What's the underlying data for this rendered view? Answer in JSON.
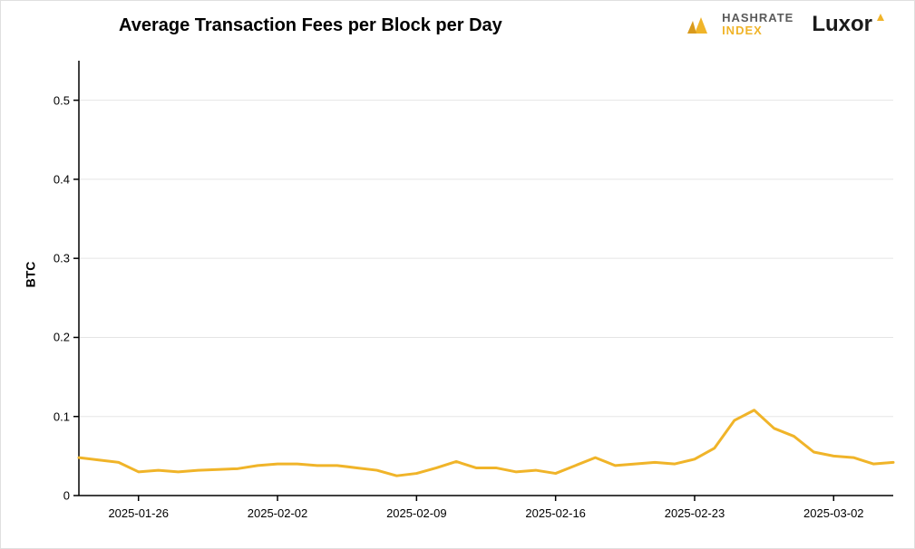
{
  "chart": {
    "type": "line",
    "title": "Average Transaction Fees per Block per Day",
    "title_fontsize": 20,
    "title_fontweight": 700,
    "ylabel": "BTC",
    "ylabel_fontsize": 14,
    "ylabel_fontweight": 700,
    "background_color": "#ffffff",
    "border_color": "#e0e0e0",
    "grid_color": "#e5e5e5",
    "axis_color": "#000000",
    "line_color": "#f0b429",
    "line_width": 3,
    "ylim": [
      0,
      0.55
    ],
    "yticks": [
      0,
      0.1,
      0.2,
      0.3,
      0.4,
      0.5
    ],
    "xtick_labels": [
      "2025-01-26",
      "2025-02-02",
      "2025-02-09",
      "2025-02-16",
      "2025-02-23",
      "2025-03-02"
    ],
    "xtick_positions": [
      3,
      10,
      17,
      24,
      31,
      38
    ],
    "x_range": [
      0,
      41
    ],
    "data": [
      {
        "x": 0,
        "y": 0.048
      },
      {
        "x": 1,
        "y": 0.045
      },
      {
        "x": 2,
        "y": 0.042
      },
      {
        "x": 3,
        "y": 0.03
      },
      {
        "x": 4,
        "y": 0.032
      },
      {
        "x": 5,
        "y": 0.03
      },
      {
        "x": 6,
        "y": 0.032
      },
      {
        "x": 7,
        "y": 0.033
      },
      {
        "x": 8,
        "y": 0.034
      },
      {
        "x": 9,
        "y": 0.038
      },
      {
        "x": 10,
        "y": 0.04
      },
      {
        "x": 11,
        "y": 0.04
      },
      {
        "x": 12,
        "y": 0.038
      },
      {
        "x": 13,
        "y": 0.038
      },
      {
        "x": 14,
        "y": 0.035
      },
      {
        "x": 15,
        "y": 0.032
      },
      {
        "x": 16,
        "y": 0.025
      },
      {
        "x": 17,
        "y": 0.028
      },
      {
        "x": 18,
        "y": 0.035
      },
      {
        "x": 19,
        "y": 0.043
      },
      {
        "x": 20,
        "y": 0.035
      },
      {
        "x": 21,
        "y": 0.035
      },
      {
        "x": 22,
        "y": 0.03
      },
      {
        "x": 23,
        "y": 0.032
      },
      {
        "x": 24,
        "y": 0.028
      },
      {
        "x": 25,
        "y": 0.038
      },
      {
        "x": 26,
        "y": 0.048
      },
      {
        "x": 27,
        "y": 0.038
      },
      {
        "x": 28,
        "y": 0.04
      },
      {
        "x": 29,
        "y": 0.042
      },
      {
        "x": 30,
        "y": 0.04
      },
      {
        "x": 31,
        "y": 0.046
      },
      {
        "x": 32,
        "y": 0.06
      },
      {
        "x": 33,
        "y": 0.095
      },
      {
        "x": 34,
        "y": 0.108
      },
      {
        "x": 35,
        "y": 0.085
      },
      {
        "x": 36,
        "y": 0.075
      },
      {
        "x": 37,
        "y": 0.055
      },
      {
        "x": 38,
        "y": 0.05
      },
      {
        "x": 39,
        "y": 0.048
      },
      {
        "x": 40,
        "y": 0.04
      },
      {
        "x": 41,
        "y": 0.042
      }
    ]
  },
  "brand": {
    "hashrate_line1": "HASHRATE",
    "hashrate_line2": "INDEX",
    "hashrate_color1": "#5a5a5a",
    "hashrate_color2": "#f0b429",
    "luxor_text": "Luxor",
    "luxor_color": "#1a1a1a",
    "accent_color": "#f0b429"
  }
}
